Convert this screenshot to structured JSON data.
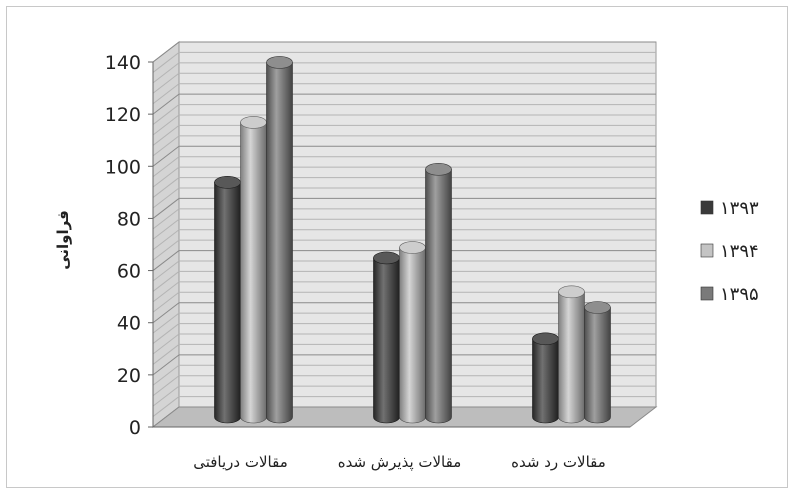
{
  "chart_data": {
    "type": "bar",
    "title": "",
    "xlabel": "",
    "ylabel": "فراوانی",
    "ylim": [
      0,
      140
    ],
    "y_ticks": [
      0,
      20,
      40,
      60,
      80,
      100,
      120,
      140
    ],
    "grid": true,
    "legend_position": "right",
    "categories": [
      "مقالات دریافتی",
      "مقالات پذیرش شده",
      "مقالات رد شده"
    ],
    "series": [
      {
        "name": "۱۳۹۳",
        "color": "#3a3a3a",
        "values": [
          90,
          61,
          30
        ]
      },
      {
        "name": "۱۳۹۴",
        "color": "#c4c4c4",
        "values": [
          113,
          65,
          48
        ]
      },
      {
        "name": "۱۳۹۵",
        "color": "#7a7a7a",
        "values": [
          136,
          95,
          42
        ]
      }
    ]
  }
}
